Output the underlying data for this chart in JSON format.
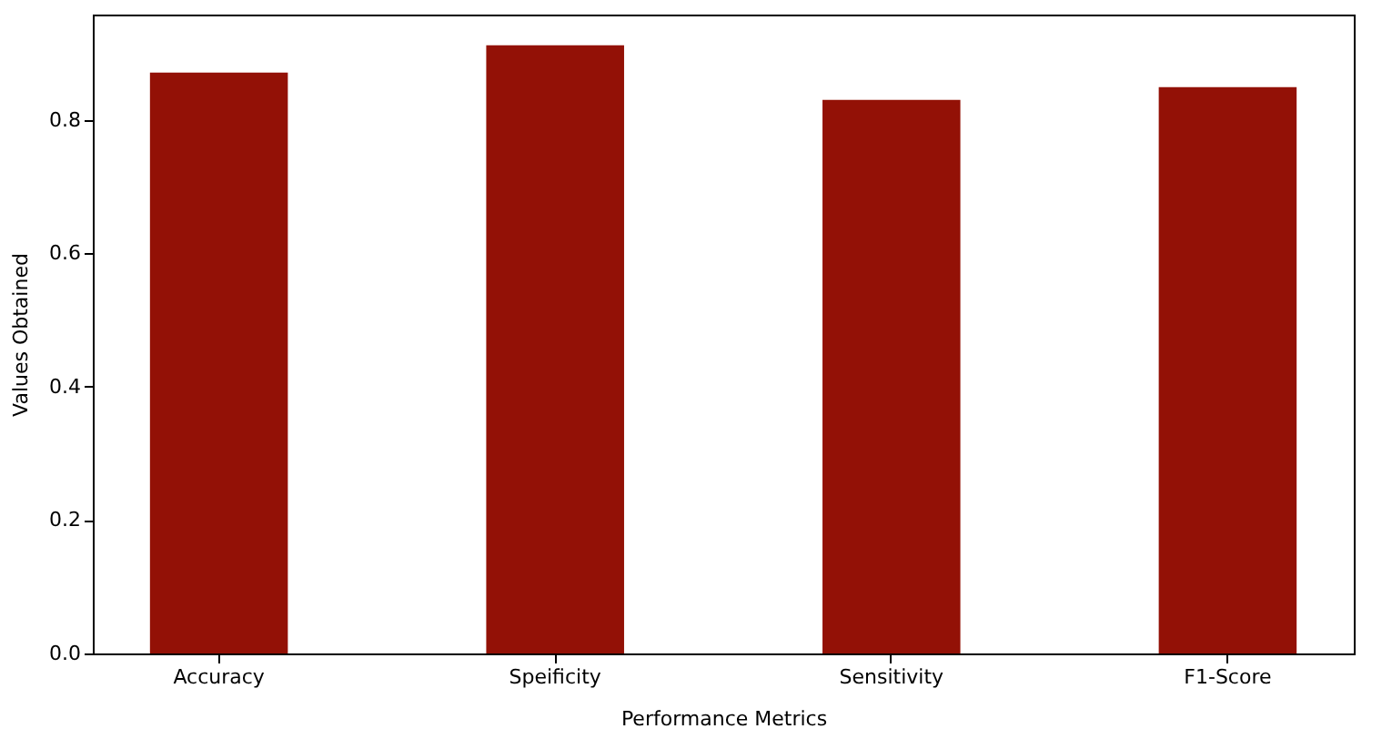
{
  "chart_data": {
    "type": "bar",
    "categories": [
      "Accuracy",
      "Speificity",
      "Sensitivity",
      "F1-Score"
    ],
    "values": [
      0.871,
      0.912,
      0.83,
      0.849
    ],
    "color": "#931106",
    "xlabel": "Performance Metrics",
    "ylabel": "Values Obtained",
    "ylim": [
      0,
      0.958
    ],
    "yticks": [
      {
        "value": 0,
        "label": "0.0"
      },
      0.2,
      0.4,
      0.6,
      0.8
    ],
    "grid": false
  }
}
